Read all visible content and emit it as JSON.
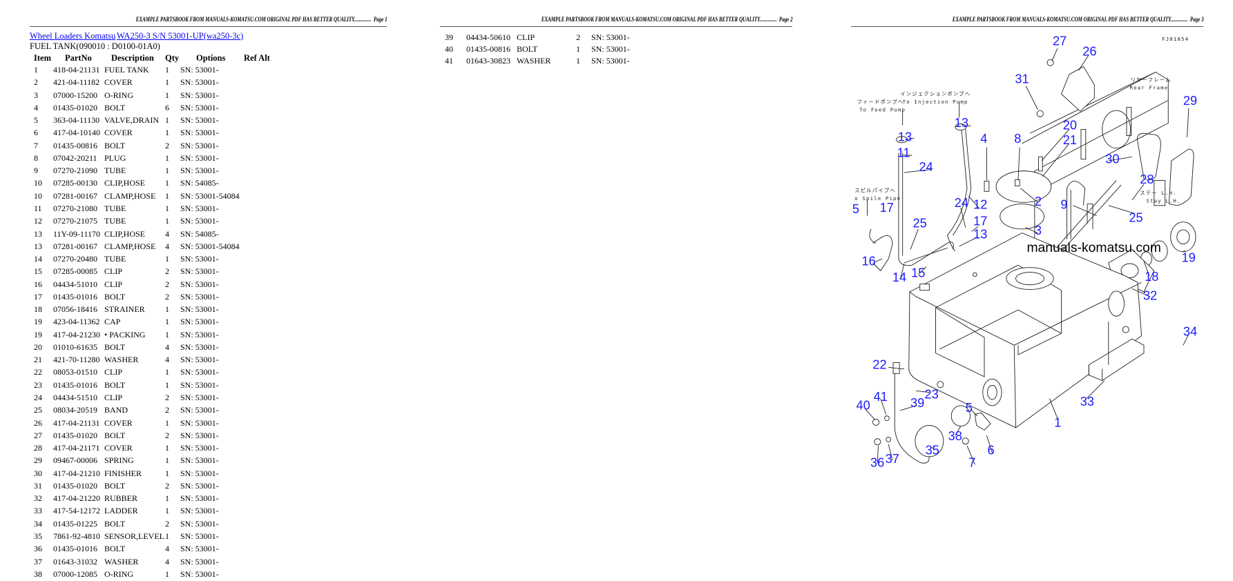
{
  "page_header_text": "EXAMPLE PARTSBOOK FROM MANUALS-KOMATSU.COM ORIGINAL PDF HAS BETTER QUALITY..............",
  "pages": [
    {
      "page_label": "Page 1"
    },
    {
      "page_label": "Page 2"
    },
    {
      "page_label": "Page 3"
    }
  ],
  "breadcrumb": {
    "category_link": "Wheel Loaders Komatsu",
    "model_link": "WA250-3 S/N 53001-UP(wa250-3c)"
  },
  "section_title": "FUEL TANK(090010 : D0100-01A0)",
  "table": {
    "headers": [
      "Item",
      "PartNo",
      "Description",
      "Qty",
      "Options",
      "Ref Alt"
    ],
    "rows_page1": [
      [
        "1",
        "418-04-21131",
        "FUEL TANK",
        "1",
        "SN: 53001-"
      ],
      [
        "2",
        "421-04-11182",
        "COVER",
        "1",
        "SN: 53001-"
      ],
      [
        "3",
        "07000-15200",
        "O-RING",
        "1",
        "SN: 53001-"
      ],
      [
        "4",
        "01435-01020",
        "BOLT",
        "6",
        "SN: 53001-"
      ],
      [
        "5",
        "363-04-11130",
        "VALVE,DRAIN",
        "1",
        "SN: 53001-"
      ],
      [
        "6",
        "417-04-10140",
        "COVER",
        "1",
        "SN: 53001-"
      ],
      [
        "7",
        "01435-00816",
        "BOLT",
        "2",
        "SN: 53001-"
      ],
      [
        "8",
        "07042-20211",
        "PLUG",
        "1",
        "SN: 53001-"
      ],
      [
        "9",
        "07270-21090",
        "TUBE",
        "1",
        "SN: 53001-"
      ],
      [
        "10",
        "07285-00130",
        "CLIP,HOSE",
        "1",
        "SN: 54085-"
      ],
      [
        "10",
        "07281-00167",
        "CLAMP,HOSE",
        "1",
        "SN: 53001-54084"
      ],
      [
        "11",
        "07270-21080",
        "TUBE",
        "1",
        "SN: 53001-"
      ],
      [
        "12",
        "07270-21075",
        "TUBE",
        "1",
        "SN: 53001-"
      ],
      [
        "13",
        "11Y-09-11170",
        "CLIP,HOSE",
        "4",
        "SN: 54085-"
      ],
      [
        "13",
        "07281-00167",
        "CLAMP,HOSE",
        "4",
        "SN: 53001-54084"
      ],
      [
        "14",
        "07270-20480",
        "TUBE",
        "1",
        "SN: 53001-"
      ],
      [
        "15",
        "07285-00085",
        "CLIP",
        "2",
        "SN: 53001-"
      ],
      [
        "16",
        "04434-51010",
        "CLIP",
        "2",
        "SN: 53001-"
      ],
      [
        "17",
        "01435-01016",
        "BOLT",
        "2",
        "SN: 53001-"
      ],
      [
        "18",
        "07056-18416",
        "STRAINER",
        "1",
        "SN: 53001-"
      ],
      [
        "19",
        "423-04-11362",
        "CAP",
        "1",
        "SN: 53001-"
      ],
      [
        "19",
        "417-04-21230",
        "• PACKING",
        "1",
        "SN: 53001-"
      ],
      [
        "20",
        "01010-61635",
        "BOLT",
        "4",
        "SN: 53001-"
      ],
      [
        "21",
        "421-70-11280",
        "WASHER",
        "4",
        "SN: 53001-"
      ],
      [
        "22",
        "08053-01510",
        "CLIP",
        "1",
        "SN: 53001-"
      ],
      [
        "23",
        "01435-01016",
        "BOLT",
        "1",
        "SN: 53001-"
      ],
      [
        "24",
        "04434-51510",
        "CLIP",
        "2",
        "SN: 53001-"
      ],
      [
        "25",
        "08034-20519",
        "BAND",
        "2",
        "SN: 53001-"
      ],
      [
        "26",
        "417-04-21131",
        "COVER",
        "1",
        "SN: 53001-"
      ],
      [
        "27",
        "01435-01020",
        "BOLT",
        "2",
        "SN: 53001-"
      ],
      [
        "28",
        "417-04-21171",
        "COVER",
        "1",
        "SN: 53001-"
      ],
      [
        "29",
        "09467-00006",
        "SPRING",
        "1",
        "SN: 53001-"
      ],
      [
        "30",
        "417-04-21210",
        "FINISHER",
        "1",
        "SN: 53001-"
      ],
      [
        "31",
        "01435-01020",
        "BOLT",
        "2",
        "SN: 53001-"
      ],
      [
        "32",
        "417-04-21220",
        "RUBBER",
        "1",
        "SN: 53001-"
      ],
      [
        "33",
        "417-54-12172",
        "LADDER",
        "1",
        "SN: 53001-"
      ],
      [
        "34",
        "01435-01225",
        "BOLT",
        "2",
        "SN: 53001-"
      ],
      [
        "35",
        "7861-92-4810",
        "SENSOR,LEVEL",
        "1",
        "SN: 53001-"
      ],
      [
        "36",
        "01435-01016",
        "BOLT",
        "4",
        "SN: 53001-"
      ],
      [
        "37",
        "01643-31032",
        "WASHER",
        "4",
        "SN: 53001-"
      ],
      [
        "38",
        "07000-12085",
        "O-RING",
        "1",
        "SN: 53001-"
      ]
    ],
    "rows_page2": [
      [
        "39",
        "04434-50610",
        "CLIP",
        "2",
        "SN: 53001-"
      ],
      [
        "40",
        "01435-00816",
        "BOLT",
        "1",
        "SN: 53001-"
      ],
      [
        "41",
        "01643-30823",
        "WASHER",
        "1",
        "SN: 53001-"
      ]
    ]
  },
  "diagram": {
    "drawing_code": "FJ01854",
    "watermark": "manuals-komatsu.com",
    "notes": [
      "インジェクションポンプへ",
      "To Injection Pump",
      "フィードポンプへ",
      "To Feed Pump",
      "スピルパイプへ",
      "o Spile Pipe",
      "リヤーフレーム",
      "Rear Frame",
      "ステー L.H.",
      "Stay L.H."
    ],
    "callouts": [
      "27",
      "26",
      "31",
      "13",
      "13",
      "11",
      "24",
      "4",
      "8",
      "20",
      "21",
      "29",
      "30",
      "28",
      "2",
      "12",
      "24",
      "9",
      "25",
      "5",
      "17",
      "17",
      "13",
      "3",
      "25",
      "16",
      "14",
      "15",
      "19",
      "18",
      "32",
      "34",
      "33",
      "1",
      "22",
      "23",
      "41",
      "40",
      "39",
      "5",
      "38",
      "35",
      "6",
      "7",
      "36",
      "37"
    ],
    "callout_color": "#1a1aff"
  }
}
